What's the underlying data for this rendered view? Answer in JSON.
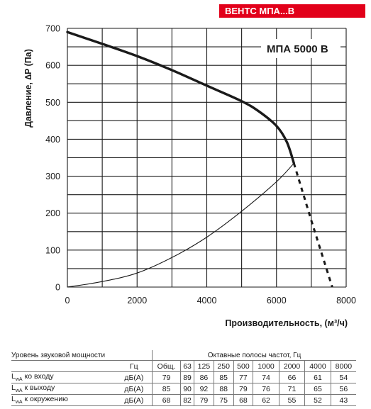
{
  "header": {
    "badge": "ВЕНТС МПА...В",
    "badge_color": "#e2001a"
  },
  "chart_data": {
    "type": "line",
    "title": "МПА 5000 В",
    "xlabel": "Производительность, (м³/ч)",
    "ylabel": "Давление, ∆P (Па)",
    "xlim": [
      0,
      8000
    ],
    "ylim": [
      0,
      700
    ],
    "x_ticks": [
      "0",
      "2000",
      "4000",
      "6000",
      "8000"
    ],
    "y_ticks": [
      "0",
      "100",
      "200",
      "300",
      "400",
      "500",
      "600",
      "700"
    ],
    "grid": true,
    "series": [
      {
        "style": "thick",
        "x": [
          0,
          1000,
          2000,
          3000,
          4000,
          5000,
          5500,
          6000,
          6300,
          6500
        ],
        "y": [
          690,
          658,
          625,
          587,
          545,
          503,
          475,
          436,
          392,
          335
        ]
      },
      {
        "style": "dashed",
        "x": [
          6500,
          7000,
          7300,
          7600
        ],
        "y": [
          335,
          180,
          90,
          0
        ]
      },
      {
        "style": "thin",
        "x": [
          0,
          1000,
          2000,
          3000,
          4000,
          5000,
          6000,
          6500
        ],
        "y": [
          0,
          15,
          38,
          80,
          135,
          205,
          285,
          335
        ]
      }
    ]
  },
  "sound_table": {
    "title": "Уровень звуковой мощности",
    "octave_title": "Октавные полосы частот, Гц",
    "hz_unit": "Гц",
    "bands": [
      "Общ.",
      "63",
      "125",
      "250",
      "500",
      "1000",
      "2000",
      "4000",
      "8000"
    ],
    "rows": [
      {
        "label_main": "L",
        "label_sub": "wA",
        "label_rest": " ко входу",
        "unit": "дБ(А)",
        "values": [
          "79",
          "89",
          "86",
          "85",
          "77",
          "74",
          "66",
          "61",
          "54"
        ]
      },
      {
        "label_main": "L",
        "label_sub": "wA",
        "label_rest": " к выходу",
        "unit": "дБ(А)",
        "values": [
          "85",
          "90",
          "92",
          "88",
          "79",
          "76",
          "71",
          "65",
          "56"
        ]
      },
      {
        "label_main": "L",
        "label_sub": "wA",
        "label_rest": " к окружению",
        "unit": "дБ(А)",
        "values": [
          "68",
          "82",
          "79",
          "75",
          "68",
          "62",
          "55",
          "52",
          "43"
        ]
      }
    ]
  }
}
